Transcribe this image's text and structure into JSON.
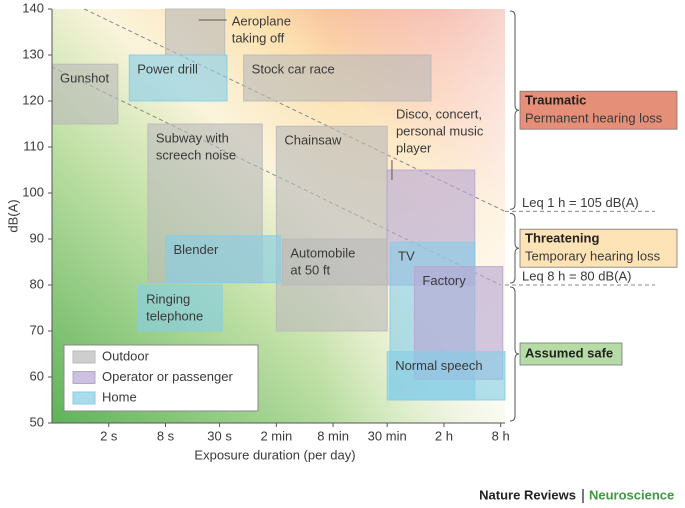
{
  "chart_data": {
    "type": "range",
    "x_label": "Exposure duration (per day)",
    "y_label": "dB(A)",
    "xscale": "log",
    "xlim": [
      0.5,
      32000
    ],
    "ylim": [
      50,
      140
    ],
    "xticks": [
      {
        "value": 2,
        "label": "2 s"
      },
      {
        "value": 8,
        "label": "8 s"
      },
      {
        "value": 30,
        "label": "30 s"
      },
      {
        "value": 120,
        "label": "2 min"
      },
      {
        "value": 480,
        "label": "8 min"
      },
      {
        "value": 1800,
        "label": "30 min"
      },
      {
        "value": 7200,
        "label": "2 h"
      },
      {
        "value": 28800,
        "label": "8 h"
      }
    ],
    "yticks": [
      50,
      60,
      70,
      80,
      90,
      100,
      110,
      120,
      130,
      140
    ],
    "series": [
      {
        "name": "Outdoor",
        "color": "#b9b9b9"
      },
      {
        "name": "Operator or passenger",
        "color": "#b7a6d2"
      },
      {
        "name": "Home",
        "color": "#86cde6"
      }
    ],
    "boxes": [
      {
        "label": [
          "Gunshot"
        ],
        "group": 0,
        "x": [
          0.5,
          2.5
        ],
        "y": [
          115,
          128
        ]
      },
      {
        "label": [
          "Aeroplane",
          "taking off"
        ],
        "group": 0,
        "x": [
          8,
          34
        ],
        "y": [
          130,
          140
        ]
      },
      {
        "label": [
          "Stock car race"
        ],
        "group": 0,
        "x": [
          54,
          5250
        ],
        "y": [
          120,
          130
        ]
      },
      {
        "label": [
          "Power drill"
        ],
        "group": 2,
        "x": [
          3.3,
          36
        ],
        "y": [
          120,
          130
        ]
      },
      {
        "label": [
          "Subway with",
          "screech noise"
        ],
        "group": 0,
        "x": [
          5.2,
          85
        ],
        "y": [
          80.5,
          115
        ]
      },
      {
        "label": [
          "Chainsaw"
        ],
        "group": 0,
        "x": [
          120,
          1800
        ],
        "y": [
          70,
          114.5
        ]
      },
      {
        "label": [
          "Disco, concert,",
          "personal music",
          "player"
        ],
        "group": 1,
        "x": [
          1790,
          15300
        ],
        "y": [
          80,
          105
        ]
      },
      {
        "label": [
          "Blender"
        ],
        "group": 2,
        "x": [
          8,
          132
        ],
        "y": [
          80.5,
          90.7
        ]
      },
      {
        "label": [
          "Automobile",
          "at 50 ft"
        ],
        "group": 0,
        "x": [
          139,
          1800
        ],
        "y": [
          80,
          90
        ]
      },
      {
        "label": [
          "Ringing",
          "telephone"
        ],
        "group": 2,
        "x": [
          4.1,
          32
        ],
        "y": [
          70,
          80
        ]
      },
      {
        "label": [
          "TV"
        ],
        "group": 2,
        "x": [
          1930,
          15300
        ],
        "y": [
          55,
          89.3
        ]
      },
      {
        "label": [
          "Factory"
        ],
        "group": 1,
        "x": [
          3500,
          30300
        ],
        "y": [
          59.5,
          84
        ]
      },
      {
        "label": [
          "Normal speech"
        ],
        "group": 2,
        "x": [
          1800,
          32000
        ],
        "y": [
          55,
          65.5
        ]
      }
    ],
    "leq_lines": [
      {
        "label": "Leq 1 h = 105 dB(A)",
        "x": [
          1.1,
          32000
        ],
        "y": [
          140,
          96
        ]
      },
      {
        "label": "Leq 8 h = 80 dB(A)",
        "x": [
          0.5,
          28800
        ],
        "y": [
          127.4,
          80
        ]
      }
    ],
    "zones": [
      {
        "name": "Traumatic",
        "desc": "Permanent hearing loss",
        "color": "#e58f78",
        "ylim": [
          96,
          140
        ]
      },
      {
        "name": "Threatening",
        "desc": "Temporary hearing loss",
        "color": "#fde3b5",
        "ylim": [
          80,
          96
        ]
      },
      {
        "name": "Assumed safe",
        "color": "#b6dba6",
        "ylim": [
          50,
          80
        ]
      }
    ]
  },
  "footer": {
    "journal": "Nature Reviews",
    "section": "Neuroscience"
  }
}
